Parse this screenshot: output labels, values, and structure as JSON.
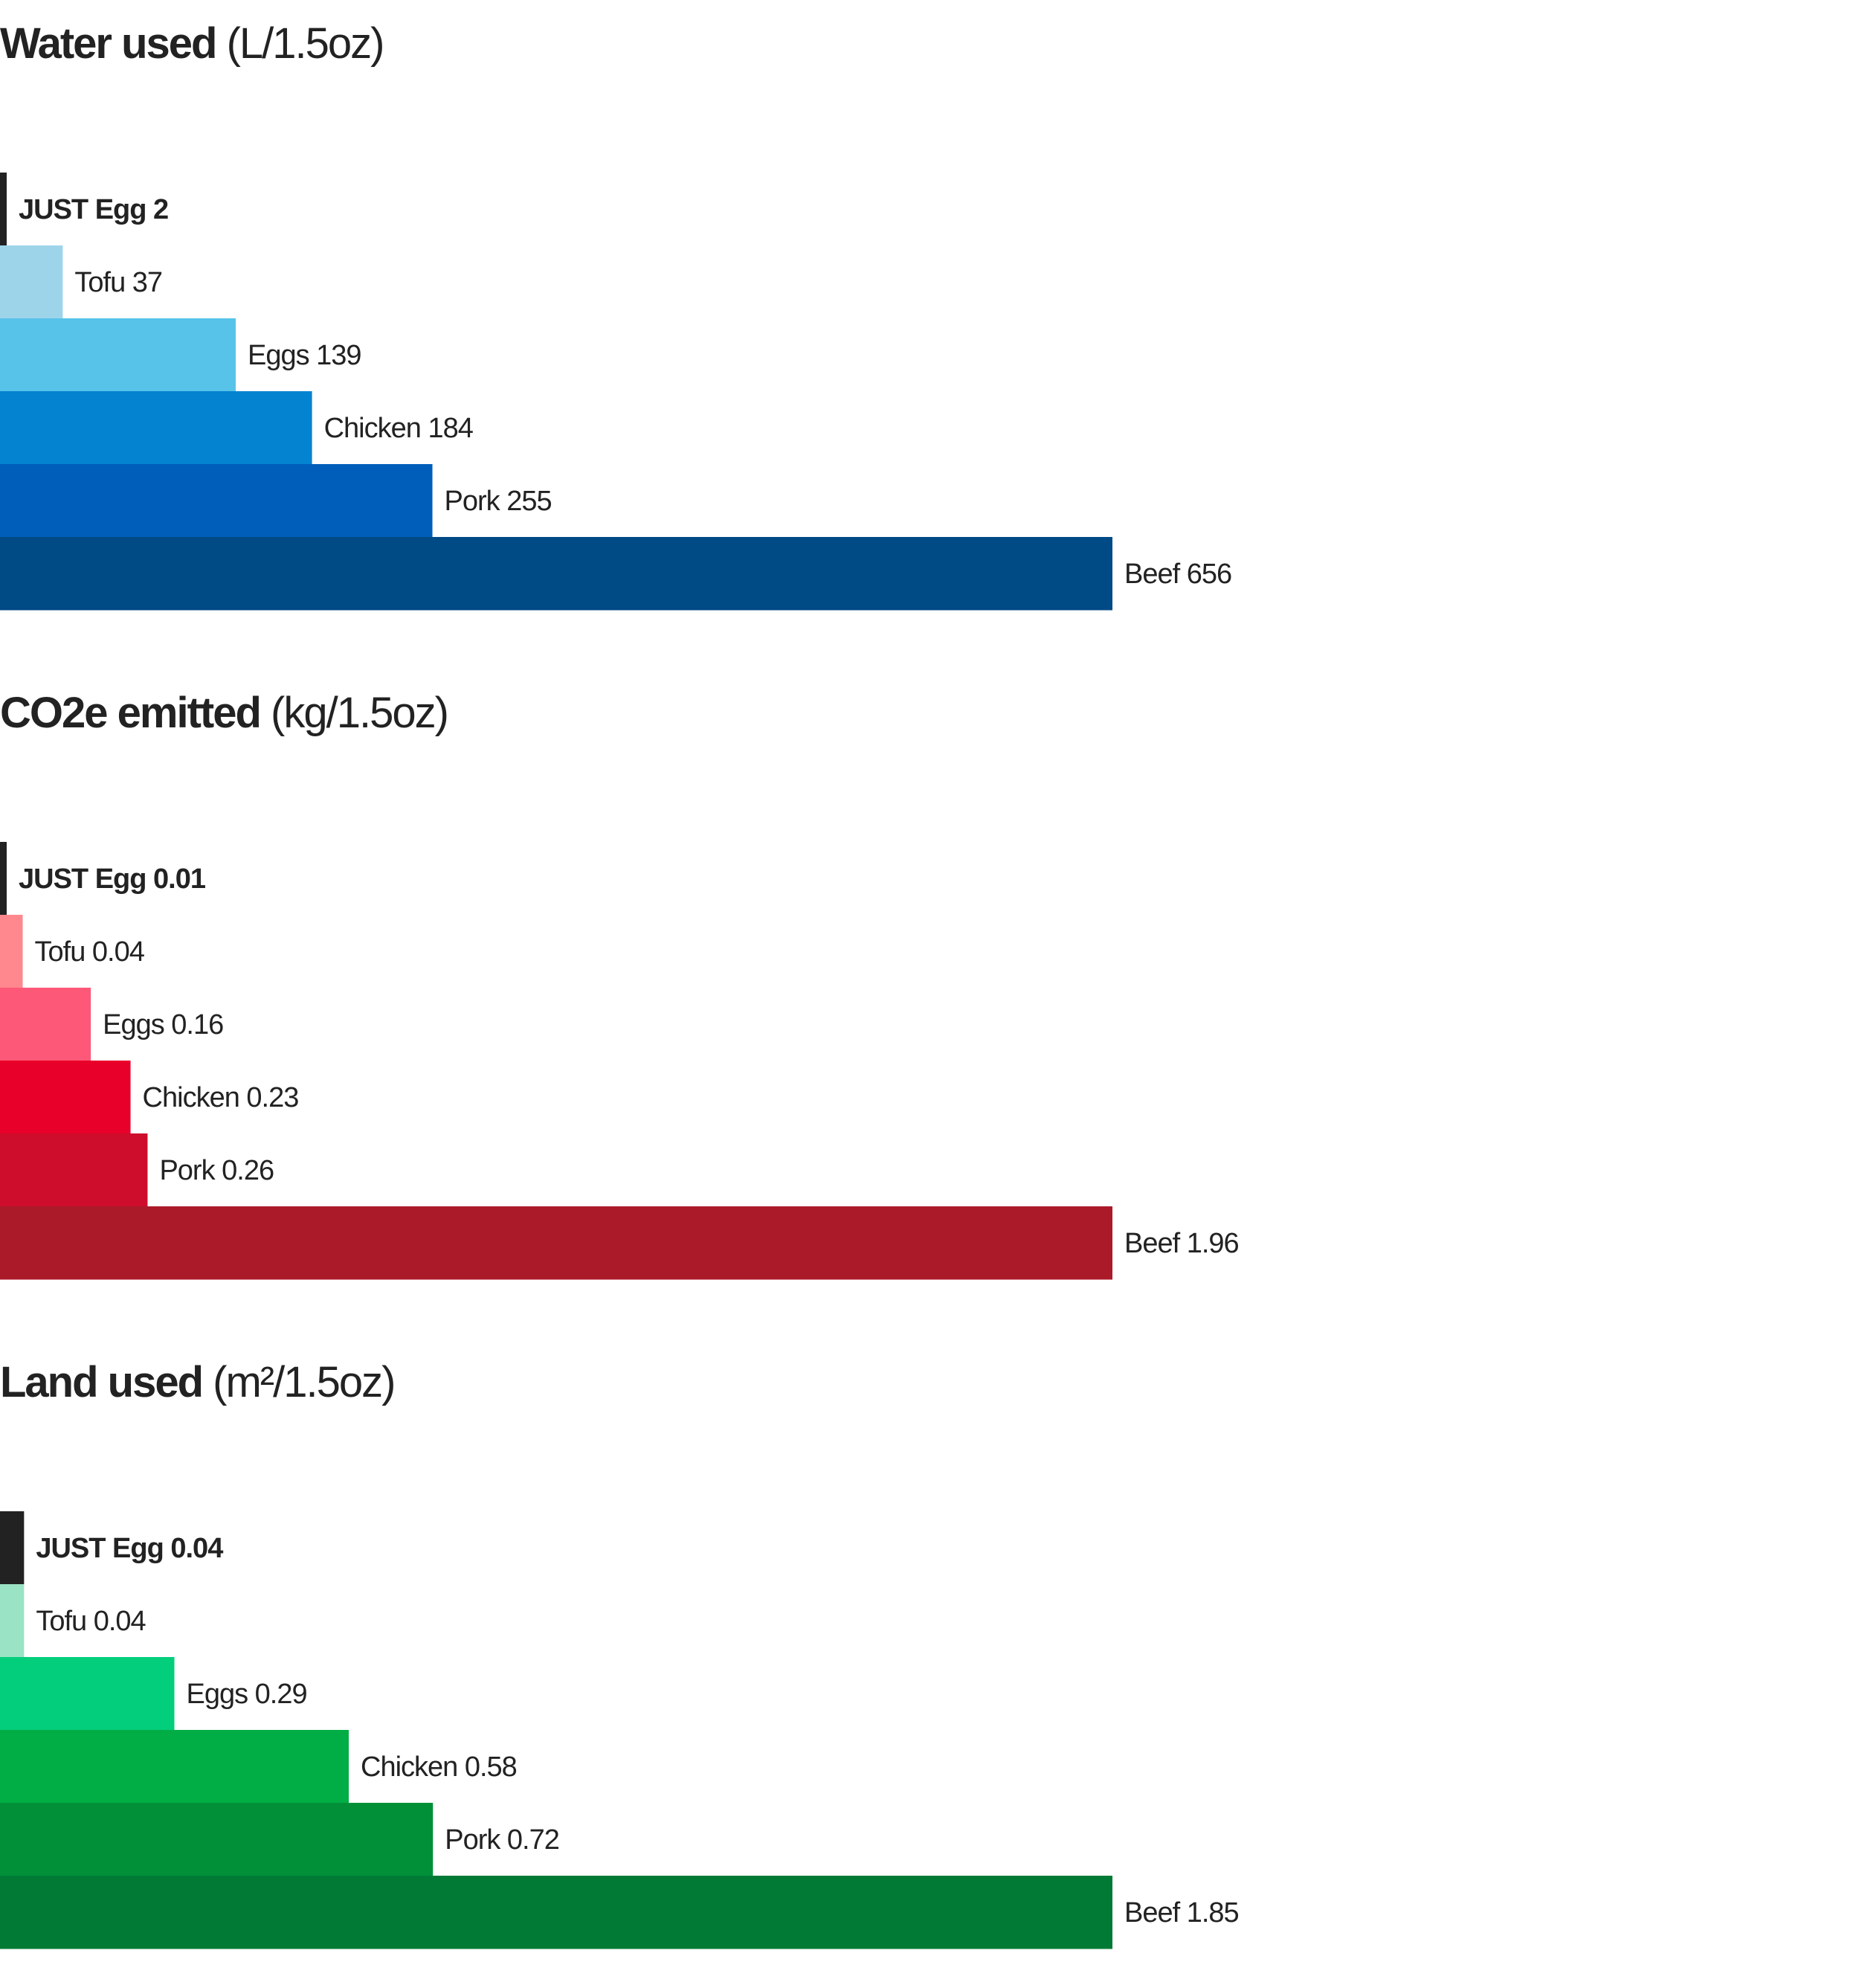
{
  "chart_data": [
    {
      "type": "bar",
      "orientation": "horizontal",
      "title": "Water used",
      "unit": "(L/1.5oz)",
      "categories": [
        "JUST Egg",
        "Tofu",
        "Eggs",
        "Chicken",
        "Pork",
        "Beef"
      ],
      "values": [
        2,
        37,
        139,
        184,
        255,
        656
      ],
      "value_labels": [
        "2",
        "37",
        "139",
        "184",
        "255",
        "656"
      ],
      "xlim": [
        0,
        656
      ],
      "colors": [
        "#222222",
        "#9ed4ea",
        "#57c3e9",
        "#0483d0",
        "#005ebb",
        "#004a86"
      ],
      "highlight": "JUST Egg",
      "grid": false,
      "legend": "none"
    },
    {
      "type": "bar",
      "orientation": "horizontal",
      "title": "CO2e emitted",
      "unit": "(kg/1.5oz)",
      "categories": [
        "JUST Egg",
        "Tofu",
        "Eggs",
        "Chicken",
        "Pork",
        "Beef"
      ],
      "values": [
        0.01,
        0.04,
        0.16,
        0.23,
        0.26,
        1.96
      ],
      "value_labels": [
        "0.01",
        "0.04",
        "0.16",
        "0.23",
        "0.26",
        "1.96"
      ],
      "colors": [
        "#222222",
        "#ff888e",
        "#fe5878",
        "#e9002a",
        "#cd0d2b",
        "#ab1a29"
      ],
      "highlight": "JUST Egg",
      "grid": false,
      "legend": "none"
    },
    {
      "type": "bar",
      "orientation": "horizontal",
      "title": "Land used",
      "unit": "(m²/1.5oz)",
      "categories": [
        "JUST Egg",
        "Tofu",
        "Eggs",
        "Chicken",
        "Pork",
        "Beef"
      ],
      "values": [
        0.04,
        0.04,
        0.29,
        0.58,
        0.72,
        1.85
      ],
      "value_labels": [
        "0.04",
        "0.04",
        "0.29",
        "0.58",
        "0.72",
        "1.85"
      ],
      "colors": [
        "#222222",
        "#9ae3c4",
        "#03ce7c",
        "#01ae45",
        "#019038",
        "#017a36"
      ],
      "highlight": "JUST Egg",
      "grid": false,
      "legend": "none"
    }
  ]
}
